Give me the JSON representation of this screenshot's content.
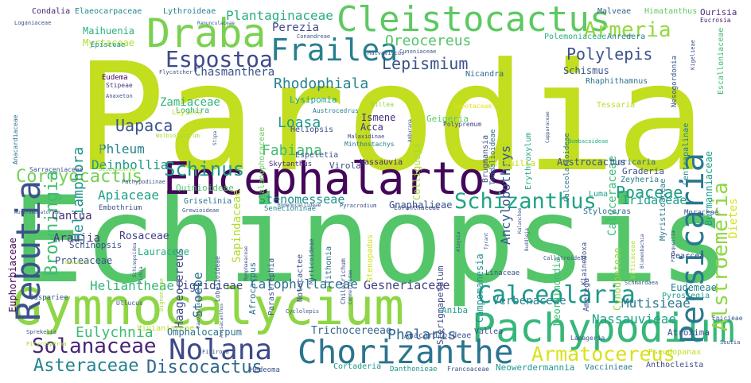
{
  "words": [
    {
      "text": "Parodia",
      "color": "#c3dd1f"
    },
    {
      "text": "Echinopsis",
      "color": "#54c568"
    },
    {
      "text": "Encephalartos",
      "color": "#44075a"
    },
    {
      "text": "Gymnocalycium",
      "color": "#8ed645"
    },
    {
      "text": "Pachypodium",
      "color": "#35b779"
    },
    {
      "text": "Chorizanthe",
      "color": "#2b748e"
    },
    {
      "text": "Nolana",
      "color": "#3e4989"
    },
    {
      "text": "Cleistocactus",
      "color": "#5ec962"
    },
    {
      "text": "Draba",
      "color": "#7ad151"
    },
    {
      "text": "Frailea",
      "color": "#277f8e"
    },
    {
      "text": "Rebutia",
      "color": "#3b528b"
    },
    {
      "text": "Persicaria",
      "color": "#2a788e"
    },
    {
      "text": "Alstroemeria",
      "color": "#8fd744"
    },
    {
      "text": "Calceolaria",
      "color": "#1f988b"
    },
    {
      "text": "Schizanthus",
      "color": "#20a386"
    },
    {
      "text": "Espostoa",
      "color": "#3e4a89"
    },
    {
      "text": "Schinus",
      "color": "#1e9b8a"
    },
    {
      "text": "Corryocactus",
      "color": "#75d054"
    },
    {
      "text": "Armatocereus",
      "color": "#d8e219"
    },
    {
      "text": "Solanaceae",
      "color": "#482576"
    },
    {
      "text": "Asteraceae",
      "color": "#25838e"
    },
    {
      "text": "Discocactus",
      "color": "#31688e"
    },
    {
      "text": "Browningia",
      "color": "#3fbc73"
    },
    {
      "text": "Heliamphora",
      "color": "#20928c"
    },
    {
      "text": "Polylepis",
      "color": "#3b528b"
    },
    {
      "text": "Armeria",
      "color": "#95d840"
    },
    {
      "text": "Oreocereus",
      "color": "#54c568"
    },
    {
      "text": "Rhodophiala",
      "color": "#26828e"
    },
    {
      "text": "Lepismium",
      "color": "#3b528b"
    },
    {
      "text": "Poaceae",
      "color": "#1e9c89"
    },
    {
      "text": "Nassauvieae",
      "color": "#1fa187"
    },
    {
      "text": "Mutisieae",
      "color": "#2a788e"
    },
    {
      "text": "Eulychnia",
      "color": "#3dbc74"
    },
    {
      "text": "Phalaris",
      "color": "#31688e"
    },
    {
      "text": "Uapaca",
      "color": "#3b528b"
    },
    {
      "text": "Fabiana",
      "color": "#3fbc73"
    },
    {
      "text": "Loasa",
      "color": "#1e9b8a"
    },
    {
      "text": "Deinbollia",
      "color": "#1f988b"
    },
    {
      "text": "Phleum",
      "color": "#25838e"
    },
    {
      "text": "Apiaceae",
      "color": "#1fa088"
    },
    {
      "text": "Stenomesseae",
      "color": "#20928c"
    },
    {
      "text": "Iridaceae",
      "color": "#1fa187"
    },
    {
      "text": "Cantua",
      "color": "#472d7b"
    },
    {
      "text": "Araujia",
      "color": "#46337f"
    },
    {
      "text": "Rosaceae",
      "color": "#433e85"
    },
    {
      "text": "Heliantheae",
      "color": "#35b779"
    },
    {
      "text": "Calophyllaceae",
      "color": "#2e6f8e"
    },
    {
      "text": "Gesneriaceae",
      "color": "#424086"
    },
    {
      "text": "Tigridieae",
      "color": "#3e4989"
    },
    {
      "text": "Verbenaceae",
      "color": "#25848e"
    },
    {
      "text": "Trichocereeae",
      "color": "#32658e"
    },
    {
      "text": "Ancylobothrys",
      "color": "#365c8d"
    },
    {
      "text": "Calyceraceae",
      "color": "#3dbc74"
    },
    {
      "text": "Sapindaceae",
      "color": "#b0dd2f"
    },
    {
      "text": "Haageocereus",
      "color": "#3f4788"
    },
    {
      "text": "Stoebe",
      "color": "#2c718e"
    },
    {
      "text": "Plantaginaceae",
      "color": "#28ae80"
    },
    {
      "text": "Perezia",
      "color": "#3e4a89"
    },
    {
      "text": "Chasmanthera",
      "color": "#3b528b"
    },
    {
      "text": "Zamiaceae",
      "color": "#32b67a"
    },
    {
      "text": "Lauraceae",
      "color": "#25ab82"
    },
    {
      "text": "Proteaceae",
      "color": "#39568c"
    },
    {
      "text": "Gnaphalieae",
      "color": "#3b528b"
    },
    {
      "text": "Dietes",
      "color": "#d5e21a"
    },
    {
      "text": "Maihuenia",
      "color": "#29af7f"
    },
    {
      "text": "Myrtaceae",
      "color": "#b2dd2d"
    },
    {
      "text": "Condalia",
      "color": "#482475"
    },
    {
      "text": "Elaeocarpaceae",
      "color": "#23888e"
    },
    {
      "text": "Lythroideae",
      "color": "#26828e"
    },
    {
      "text": "Malveae",
      "color": "#355f8d"
    },
    {
      "text": "Himatanthus",
      "color": "#5ec962"
    },
    {
      "text": "Ourisia",
      "color": "#472d7b"
    },
    {
      "text": "Eucrosia",
      "color": "#481d6f"
    },
    {
      "text": "Loganiaceae",
      "color": "#3b528b"
    },
    {
      "text": "Episceae",
      "color": "#1f968b"
    },
    {
      "text": "Anredera",
      "color": "#277f8e"
    },
    {
      "text": "Polemoniaceae",
      "color": "#2db27d"
    },
    {
      "text": "Escalloniaceae",
      "color": "#3fbc73"
    },
    {
      "text": "Nesogordonia",
      "color": "#39568c"
    },
    {
      "text": "Campanulaceae",
      "color": "#c0df25"
    },
    {
      "text": "Eudema",
      "color": "#440154"
    },
    {
      "text": "Stipeae",
      "color": "#453882"
    },
    {
      "text": "Anaxeton",
      "color": "#3b528b"
    },
    {
      "text": "Flycatcher",
      "color": "#3b528b"
    },
    {
      "text": "Nicandra",
      "color": "#31688e"
    },
    {
      "text": "Schismus",
      "color": "#39568c"
    },
    {
      "text": "Rhaphithamnus",
      "color": "#2c728e"
    },
    {
      "text": "Centrapalinae",
      "color": "#25838e"
    },
    {
      "text": "Burmanniaceae",
      "color": "#1f9e89"
    },
    {
      "text": "Lysipomia",
      "color": "#1fa088"
    },
    {
      "text": "Loghira",
      "color": "#27ad81"
    },
    {
      "text": "Leysera",
      "color": "#bddf26"
    },
    {
      "text": "Wolbiolastrum",
      "color": "#a5db36"
    },
    {
      "text": "Balanophoraceae",
      "color": "#6ccd5a"
    },
    {
      "text": "Austrocedrus",
      "color": "#26828e"
    },
    {
      "text": "Dillea",
      "color": "#8ed645"
    },
    {
      "text": "Sapotaceae",
      "color": "#e2e418"
    },
    {
      "text": "Heliopsis",
      "color": "#3b528b"
    },
    {
      "text": "Ismene",
      "color": "#472a7a"
    },
    {
      "text": "Acca",
      "color": "#46327e"
    },
    {
      "text": "Geigeria",
      "color": "#5ec962"
    },
    {
      "text": "Polypremum",
      "color": "#3f4889"
    },
    {
      "text": "Colliguaja",
      "color": "#a8db34"
    },
    {
      "text": "Toddalioideae",
      "color": "#31688e"
    },
    {
      "text": "Brugmansia",
      "color": "#3b528b"
    },
    {
      "text": "Erythroxylum",
      "color": "#22a884"
    },
    {
      "text": "Calceolarioideae",
      "color": "#2c728e"
    },
    {
      "text": "Bombacoideae",
      "color": "#25ac82"
    },
    {
      "text": "Tessaria",
      "color": "#b5de2b"
    },
    {
      "text": "Myristicaceae",
      "color": "#2a788e"
    },
    {
      "text": "Malaxidinae",
      "color": "#3f4788"
    },
    {
      "text": "Minthostachys",
      "color": "#287c8e"
    },
    {
      "text": "Espeletia",
      "color": "#3b528b"
    },
    {
      "text": "Skytanthus",
      "color": "#482878"
    },
    {
      "text": "Virola",
      "color": "#3e4989"
    },
    {
      "text": "Nassauvia",
      "color": "#472d7b"
    },
    {
      "text": "Tiquilia",
      "color": "#c8e020"
    },
    {
      "text": "Austrocactus",
      "color": "#3b528b"
    },
    {
      "text": "Loricaria",
      "color": "#31688e"
    },
    {
      "text": "Graderia",
      "color": "#3b528b"
    },
    {
      "text": "Zeyheria",
      "color": "#277f8e"
    },
    {
      "text": "Sarraceniaceae",
      "color": "#3b528b"
    },
    {
      "text": "Sclerocarya",
      "color": "#8ed645"
    },
    {
      "text": "Pachypodiinae",
      "color": "#3b528b"
    },
    {
      "text": "Quinioideae",
      "color": "#52c569"
    },
    {
      "text": "Griselinia",
      "color": "#2c728e"
    },
    {
      "text": "Embothrium",
      "color": "#3b528b"
    },
    {
      "text": "Grewioideae",
      "color": "#3b528b"
    },
    {
      "text": "Senecioninae",
      "color": "#277f8e"
    },
    {
      "text": "Hymenocallideae",
      "color": "#3b528b"
    },
    {
      "text": "Pyracrodium",
      "color": "#3b528b"
    },
    {
      "text": "Loranthaceae",
      "color": "#3b528b"
    },
    {
      "text": "Luma",
      "color": "#1fa088"
    },
    {
      "text": "Styloceras",
      "color": "#2e6f8e"
    },
    {
      "text": "Moraceae",
      "color": "#3b528b"
    },
    {
      "text": "Euphorbiaceae",
      "color": "#440154"
    },
    {
      "text": "Austroeupatorium",
      "color": "#3b528b"
    },
    {
      "text": "Bignonieae",
      "color": "#9fda3a"
    },
    {
      "text": "Lobelioideae",
      "color": "#3b528b"
    },
    {
      "text": "Afrocarpus",
      "color": "#2c728e"
    },
    {
      "text": "Parastrephia",
      "color": "#3b528b"
    },
    {
      "text": "Notocactee",
      "color": "#3b528b"
    },
    {
      "text": "Mirticoideae",
      "color": "#3b528b"
    },
    {
      "text": "Tithonia",
      "color": "#2c728e"
    },
    {
      "text": "Chilotrichum",
      "color": "#3b528b"
    },
    {
      "text": "Stenopadus",
      "color": "#d0e11c"
    },
    {
      "text": "Campomanesia",
      "color": "#20928c"
    },
    {
      "text": "Neoraimondia",
      "color": "#3fbc73"
    },
    {
      "text": "Cynodonteae",
      "color": "#8ed645"
    },
    {
      "text": "Sterigmapetalum",
      "color": "#3e4989"
    },
    {
      "text": "Schinopsis",
      "color": "#3b528b"
    },
    {
      "text": "Besleria",
      "color": "#b5de2b"
    },
    {
      "text": "Callitroideae",
      "color": "#3b528b"
    },
    {
      "text": "Amerega",
      "color": "#3b528b"
    },
    {
      "text": "Pearcea",
      "color": "#3b528b"
    },
    {
      "text": "Eudemeae",
      "color": "#25838e"
    },
    {
      "text": "Pyrostegia",
      "color": "#1f9e89"
    },
    {
      "text": "Epicieae",
      "color": "#3b528b"
    },
    {
      "text": "Atroxima",
      "color": "#3b528b"
    },
    {
      "text": "Soutia",
      "color": "#3b528b"
    },
    {
      "text": "Pseudopanax",
      "color": "#bddf26"
    },
    {
      "text": "Schmardaea",
      "color": "#3b528b"
    },
    {
      "text": "Klainedoxa",
      "color": "#3b528b"
    },
    {
      "text": "Linaceae",
      "color": "#3b528b"
    },
    {
      "text": "Aniba",
      "color": "#1f968b"
    },
    {
      "text": "Vallea",
      "color": "#3b528b"
    },
    {
      "text": "Lapageria",
      "color": "#3b528b"
    },
    {
      "text": "Cuspariee",
      "color": "#3b528b"
    },
    {
      "text": "Ullucus",
      "color": "#3b528b"
    },
    {
      "text": "Vivianiaceae",
      "color": "#bddf26"
    },
    {
      "text": "Omphalocarpum",
      "color": "#2c728e"
    },
    {
      "text": "Cyclolepis",
      "color": "#3b528b"
    },
    {
      "text": "Sprekelia",
      "color": "#3b528b"
    },
    {
      "text": "Pityrosperma",
      "color": "#a5db36"
    },
    {
      "text": "Fitiroya",
      "color": "#3b528b"
    },
    {
      "text": "Hedeoma",
      "color": "#3b528b"
    },
    {
      "text": "Cortaderia",
      "color": "#1f988b"
    },
    {
      "text": "Danthonieae",
      "color": "#1f968b"
    },
    {
      "text": "Francoaceae",
      "color": "#3b528b"
    },
    {
      "text": "Neowerdermannia",
      "color": "#1f988b"
    },
    {
      "text": "Vaccinieae",
      "color": "#2a788e"
    },
    {
      "text": "Anthocleista",
      "color": "#3e4a89"
    },
    {
      "text": "Anacardioideae",
      "color": "#3b528b"
    },
    {
      "text": "Conandreae",
      "color": "#3b528b"
    },
    {
      "text": "Malvaviscus",
      "color": "#3b528b"
    },
    {
      "text": "Cunoniaceae",
      "color": "#3b528b"
    },
    {
      "text": "Anacardiaceae",
      "color": "#2c728e"
    },
    {
      "text": "Urticaceae",
      "color": "#b5de2b"
    },
    {
      "text": "Tyrant",
      "color": "#3b528b"
    },
    {
      "text": "Kalanchoe",
      "color": "#3b528b"
    },
    {
      "text": "Blumenbachia",
      "color": "#3b528b"
    },
    {
      "text": "Paraqueilia",
      "color": "#3b528b"
    },
    {
      "text": "Schinopsidea",
      "color": "#3b528b"
    },
    {
      "text": "Rauvolfioideae",
      "color": "#3b528b"
    },
    {
      "text": "Nymphaeaceae",
      "color": "#3b528b"
    },
    {
      "text": "Kigelieae",
      "color": "#3b528b"
    },
    {
      "text": "Ranunculaceae",
      "color": "#3b528b"
    },
    {
      "text": "Amburana",
      "color": "#3b528b"
    },
    {
      "text": "Capparaceae",
      "color": "#3b528b"
    },
    {
      "text": "Pichia",
      "color": "#3b528b"
    },
    {
      "text": "Stipa",
      "color": "#3b528b"
    },
    {
      "text": "Commelinidae",
      "color": "#3b528b"
    },
    {
      "text": "Buddleja",
      "color": "#3b528b"
    },
    {
      "text": "Aloysia",
      "color": "#3b528b"
    },
    {
      "text": "Anisacanthus",
      "color": "#3b528b"
    }
  ]
}
